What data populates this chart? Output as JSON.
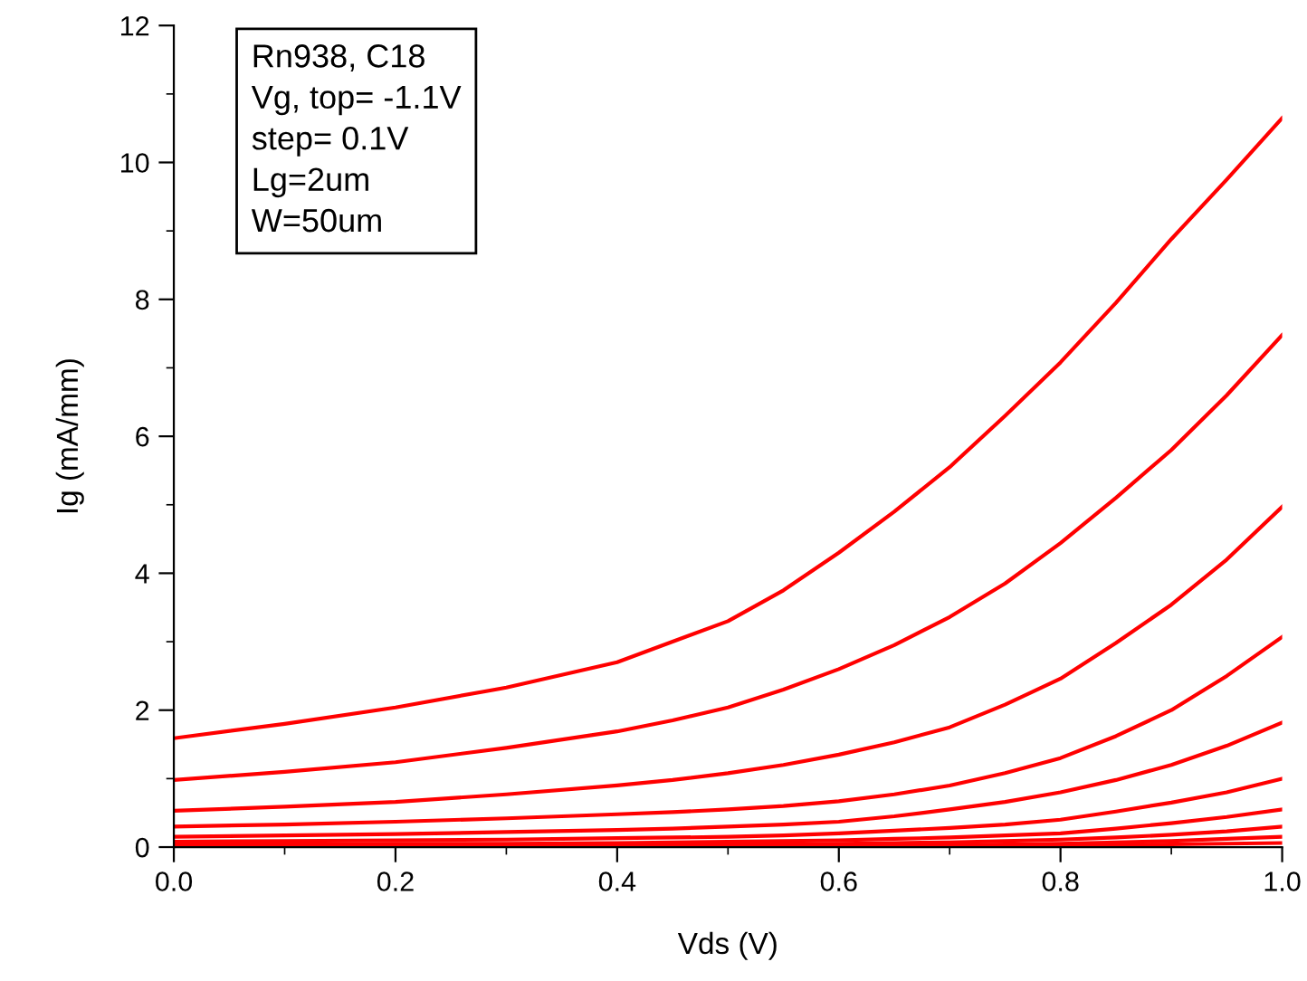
{
  "chart_data": {
    "type": "line",
    "xlabel": "Vds (V)",
    "ylabel": "Ig (mA/mm)",
    "x": [
      0.0,
      0.1,
      0.2,
      0.3,
      0.4,
      0.45,
      0.5,
      0.55,
      0.6,
      0.65,
      0.7,
      0.75,
      0.8,
      0.85,
      0.9,
      0.95,
      1.0
    ],
    "series": [
      {
        "color": "#ff0000",
        "values": [
          1.59,
          1.8,
          2.04,
          2.33,
          2.7,
          3.0,
          3.3,
          3.75,
          4.3,
          4.9,
          5.55,
          6.3,
          7.08,
          7.95,
          8.88,
          9.75,
          10.65
        ]
      },
      {
        "color": "#ff0000",
        "values": [
          0.98,
          1.1,
          1.24,
          1.45,
          1.69,
          1.85,
          2.04,
          2.3,
          2.6,
          2.95,
          3.36,
          3.85,
          4.44,
          5.1,
          5.8,
          6.6,
          7.48
        ]
      },
      {
        "color": "#ff0000",
        "values": [
          0.53,
          0.59,
          0.66,
          0.77,
          0.9,
          0.98,
          1.08,
          1.2,
          1.35,
          1.53,
          1.75,
          2.08,
          2.46,
          2.98,
          3.54,
          4.2,
          4.97
        ]
      },
      {
        "color": "#ff0000",
        "values": [
          0.3,
          0.33,
          0.37,
          0.42,
          0.48,
          0.51,
          0.55,
          0.6,
          0.67,
          0.77,
          0.9,
          1.08,
          1.3,
          1.62,
          2.0,
          2.5,
          3.07
        ]
      },
      {
        "color": "#ff0000",
        "values": [
          0.15,
          0.17,
          0.19,
          0.22,
          0.25,
          0.27,
          0.3,
          0.33,
          0.37,
          0.45,
          0.55,
          0.66,
          0.8,
          0.98,
          1.2,
          1.48,
          1.82
        ]
      },
      {
        "color": "#ff0000",
        "values": [
          0.08,
          0.09,
          0.1,
          0.11,
          0.13,
          0.14,
          0.15,
          0.17,
          0.2,
          0.24,
          0.28,
          0.33,
          0.4,
          0.52,
          0.65,
          0.8,
          1.0
        ]
      },
      {
        "color": "#ff0000",
        "values": [
          0.04,
          0.04,
          0.05,
          0.05,
          0.06,
          0.07,
          0.08,
          0.09,
          0.1,
          0.12,
          0.14,
          0.17,
          0.2,
          0.27,
          0.35,
          0.44,
          0.55
        ]
      },
      {
        "color": "#ff0000",
        "values": [
          0.02,
          0.02,
          0.02,
          0.03,
          0.03,
          0.03,
          0.04,
          0.04,
          0.05,
          0.06,
          0.07,
          0.09,
          0.11,
          0.14,
          0.18,
          0.23,
          0.3
        ]
      },
      {
        "color": "#ff0000",
        "values": [
          0.01,
          0.01,
          0.01,
          0.01,
          0.02,
          0.02,
          0.02,
          0.02,
          0.02,
          0.03,
          0.03,
          0.04,
          0.05,
          0.07,
          0.09,
          0.12,
          0.15
        ]
      },
      {
        "color": "#ff0000",
        "values": [
          0.0,
          0.0,
          0.0,
          0.0,
          0.0,
          0.0,
          0.01,
          0.01,
          0.01,
          0.01,
          0.01,
          0.02,
          0.02,
          0.03,
          0.04,
          0.05,
          0.06
        ]
      }
    ],
    "xlim": [
      0.0,
      1.0
    ],
    "xticks": [
      {
        "value": 0.0,
        "label": "0.0"
      },
      {
        "value": 0.2,
        "label": "0.2"
      },
      {
        "value": 0.4,
        "label": "0.4"
      },
      {
        "value": 0.6,
        "label": "0.6"
      },
      {
        "value": 0.8,
        "label": "0.8"
      },
      {
        "value": 1.0,
        "label": "1.0"
      }
    ],
    "ylim": [
      0,
      12
    ],
    "yticks": [
      0,
      2,
      4,
      6,
      8,
      10,
      12
    ],
    "annotations": [
      "Rn938, C18",
      "Vg, top= -1.1V",
      "step= 0.1V",
      "Lg=2um",
      "W=50um"
    ],
    "grid": false,
    "legend": false,
    "marker": "none",
    "line_style": "solid"
  }
}
